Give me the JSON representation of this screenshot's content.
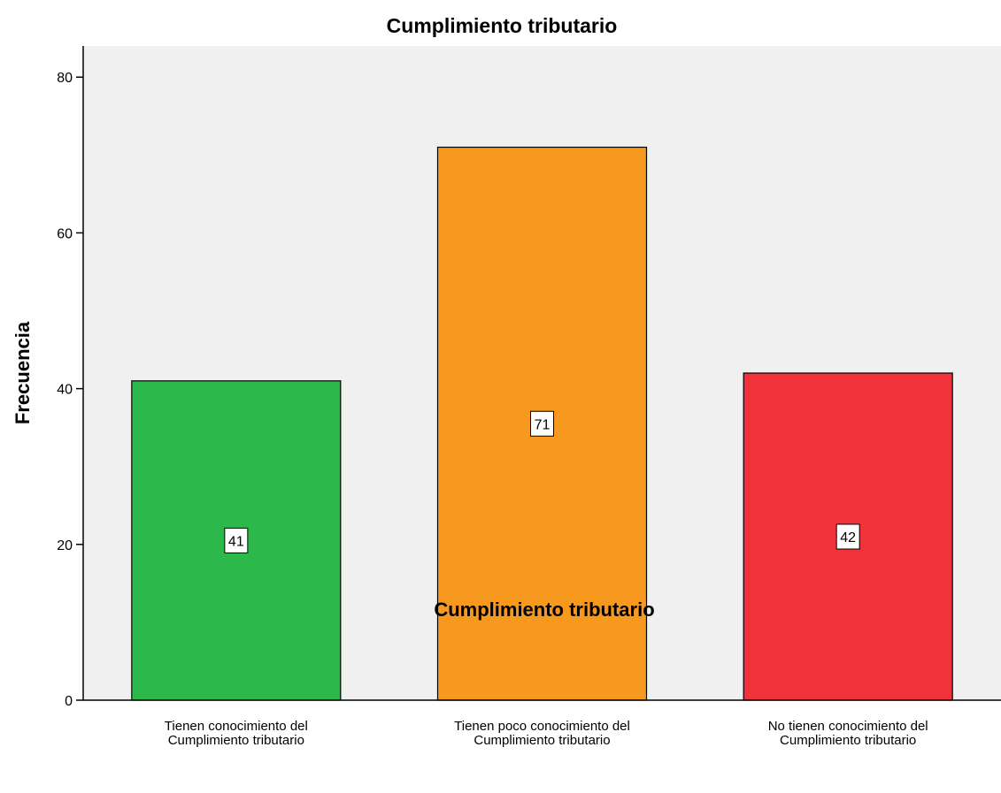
{
  "chart_data": {
    "type": "bar",
    "title": "Cumplimiento tributario",
    "xlabel": "Cumplimiento tributario",
    "ylabel": "Frecuencia",
    "categories": [
      [
        "Tienen conocimiento del",
        "Cumplimiento tributario"
      ],
      [
        "Tienen poco conocimiento del",
        "Cumplimiento tributario"
      ],
      [
        "No tienen conocimiento del",
        "Cumplimiento tributario"
      ]
    ],
    "values": [
      41,
      71,
      42
    ],
    "colors": [
      "#2db84b",
      "#f7991f",
      "#f0333a"
    ],
    "plot_background": "#f0f0f0",
    "ylim": [
      0,
      84
    ],
    "yticks": [
      0,
      20,
      40,
      60,
      80
    ],
    "grid": false,
    "data_labels": true
  }
}
